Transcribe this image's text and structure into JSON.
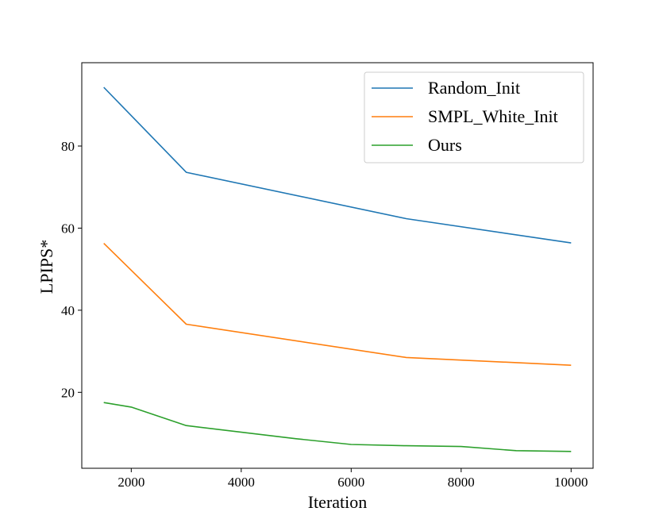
{
  "chart_data": {
    "type": "line",
    "xlabel": "Iteration",
    "ylabel": "LPIPS*",
    "xlim": [
      1100,
      10400
    ],
    "ylim": [
      1.5,
      100.3
    ],
    "xticks": [
      2000,
      4000,
      6000,
      8000,
      10000
    ],
    "xtick_labels": [
      "2000",
      "4000",
      "6000",
      "8000",
      "10000"
    ],
    "yticks": [
      20,
      40,
      60,
      80
    ],
    "ytick_labels": [
      "20",
      "40",
      "60",
      "80"
    ],
    "grid": false,
    "legend_position": "top-right",
    "series": [
      {
        "name": "Random_Init",
        "color": "#1f77b4",
        "x": [
          1500,
          3000,
          7000,
          10000
        ],
        "y": [
          94.3,
          73.6,
          62.3,
          56.4
        ]
      },
      {
        "name": "SMPL_White_Init",
        "color": "#ff7f0e",
        "x": [
          1500,
          3000,
          7000,
          10000
        ],
        "y": [
          56.3,
          36.6,
          28.5,
          26.6
        ]
      },
      {
        "name": "Ours",
        "color": "#2ca02c",
        "x": [
          1500,
          2000,
          3000,
          5000,
          6000,
          7000,
          8000,
          9000,
          10000
        ],
        "y": [
          17.5,
          16.4,
          11.9,
          8.7,
          7.3,
          7.0,
          6.8,
          5.8,
          5.6
        ]
      }
    ]
  }
}
